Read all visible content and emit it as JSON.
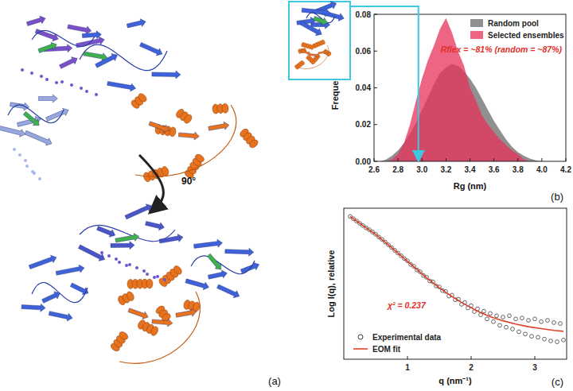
{
  "panel_a": {
    "label": "(a)",
    "rotation": "90°"
  },
  "chart_data": [
    {
      "type": "area",
      "title": "(b)",
      "xlabel": "Rg (nm)",
      "ylabel": "Frequency",
      "x": [
        2.65,
        2.7,
        2.75,
        2.8,
        2.85,
        2.9,
        2.95,
        3.0,
        3.05,
        3.1,
        3.15,
        3.2,
        3.25,
        3.3,
        3.35,
        3.4,
        3.45,
        3.5,
        3.55,
        3.6,
        3.65,
        3.7,
        3.75,
        3.8,
        3.85,
        3.9,
        3.95,
        4.0
      ],
      "series": [
        {
          "name": "Random pool",
          "color": "#8a8a8a",
          "values": [
            0,
            0.001,
            0.003,
            0.006,
            0.01,
            0.015,
            0.021,
            0.028,
            0.035,
            0.042,
            0.048,
            0.051,
            0.053,
            0.052,
            0.049,
            0.045,
            0.04,
            0.034,
            0.028,
            0.022,
            0.017,
            0.012,
            0.008,
            0.005,
            0.003,
            0.0015,
            0.0005,
            0
          ]
        },
        {
          "name": "Selected ensembles",
          "color": "#e8305a",
          "values": [
            0,
            0,
            0.001,
            0.004,
            0.01,
            0.02,
            0.033,
            0.045,
            0.055,
            0.063,
            0.072,
            0.078,
            0.07,
            0.06,
            0.052,
            0.04,
            0.033,
            0.025,
            0.02,
            0.016,
            0.012,
            0.009,
            0.006,
            0.004,
            0.001,
            0,
            0,
            0
          ]
        }
      ],
      "xlim": [
        2.6,
        4.2
      ],
      "xticks": [
        2.6,
        2.8,
        {
          "value": 3,
          "label": "3.0"
        },
        3.2,
        3.4,
        3.6,
        3.8,
        {
          "value": 4,
          "label": "4.0"
        },
        4.2
      ],
      "ylim": [
        0,
        0.08
      ],
      "yticks": [
        {
          "value": 0,
          "label": "0.00"
        },
        {
          "value": 0.02,
          "label": "0.02"
        },
        {
          "value": 0.04,
          "label": "0.04"
        },
        {
          "value": 0.06,
          "label": "0.06"
        },
        {
          "value": 0.08,
          "label": "0.08"
        }
      ],
      "legend": "upper right",
      "highlight_x": 2.97,
      "annotations": [
        {
          "text": "Rflex = ~81% (random = ~87%)",
          "color": "#e0302a"
        }
      ]
    },
    {
      "type": "line",
      "title": "(c)",
      "xlabel": "q (nm⁻¹)",
      "ylabel": "Log I(q), relative",
      "series": [
        {
          "name": "Experimental data",
          "type": "scatter",
          "marker": "circle",
          "color": "#404040",
          "x": [
            0.1,
            0.15,
            0.2,
            0.25,
            0.3,
            0.35,
            0.4,
            0.45,
            0.5,
            0.55,
            0.6,
            0.65,
            0.7,
            0.75,
            0.8,
            0.85,
            0.9,
            0.95,
            1.0,
            1.05,
            1.1,
            1.15,
            1.2,
            1.25,
            1.3,
            1.35,
            1.4,
            1.45,
            1.5,
            1.55,
            1.6,
            1.65,
            1.7,
            1.75,
            1.8,
            1.85,
            1.9,
            1.95,
            2.0,
            2.05,
            2.1,
            2.15,
            2.2,
            2.25,
            2.3,
            2.35,
            2.4,
            2.45,
            2.5,
            2.55,
            2.6,
            2.65,
            2.7,
            2.75,
            2.8,
            2.85,
            2.9,
            2.95,
            3.0,
            3.05,
            3.1,
            3.15,
            3.2,
            3.25,
            3.3,
            3.35,
            3.4,
            3.45
          ],
          "values": [
            0.12,
            0.07,
            0.02,
            -0.03,
            -0.08,
            -0.13,
            -0.17,
            -0.22,
            -0.27,
            -0.33,
            -0.38,
            -0.44,
            -0.5,
            -0.56,
            -0.62,
            -0.68,
            -0.74,
            -0.8,
            -0.85,
            -0.93,
            -0.97,
            -1.05,
            -1.09,
            -1.17,
            -1.21,
            -1.29,
            -1.31,
            -1.4,
            -1.42,
            -1.5,
            -1.52,
            -1.62,
            -1.6,
            -1.7,
            -1.69,
            -1.8,
            -1.76,
            -1.88,
            -1.83,
            -1.96,
            -1.9,
            -2.03,
            -1.95,
            -2.12,
            -2.0,
            -2.18,
            -2.05,
            -2.26,
            -2.08,
            -2.3,
            -2.05,
            -2.34,
            -2.12,
            -2.4,
            -2.1,
            -2.45,
            -2.15,
            -2.5,
            -2.12,
            -2.52,
            -2.18,
            -2.56,
            -2.15,
            -2.6,
            -2.2,
            -2.62,
            -2.22,
            -2.58
          ]
        },
        {
          "name": "EOM fit",
          "type": "line",
          "color": "#e0402a",
          "x": [
            0.1,
            0.3,
            0.5,
            0.7,
            0.9,
            1.1,
            1.3,
            1.5,
            1.7,
            1.9,
            2.1,
            2.3,
            2.5,
            2.7,
            2.9,
            3.1,
            3.3,
            3.45
          ],
          "values": [
            0.12,
            -0.08,
            -0.27,
            -0.5,
            -0.74,
            -0.98,
            -1.22,
            -1.44,
            -1.63,
            -1.8,
            -1.95,
            -2.07,
            -2.16,
            -2.23,
            -2.29,
            -2.33,
            -2.37,
            -2.39
          ]
        }
      ],
      "xlim": [
        0,
        3.5
      ],
      "xticks": [
        1,
        2,
        3
      ],
      "ylim": [
        -3.0,
        0.3
      ],
      "tick_labels": "x",
      "legend": "lower left",
      "annotations": [
        {
          "text": "χ² = 0.237",
          "color": "#e0302a"
        }
      ]
    }
  ]
}
